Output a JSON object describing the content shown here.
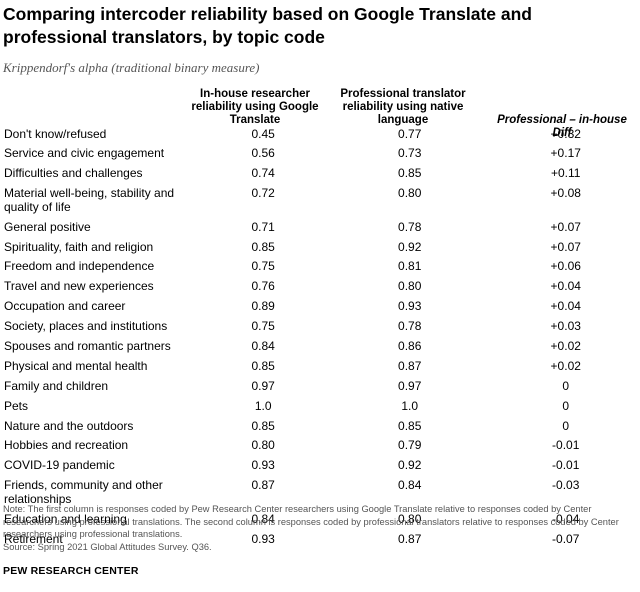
{
  "header": {
    "title": "Comparing intercoder reliability based on Google Translate and professional translators, by topic code",
    "subtitle": "Krippendorf's alpha (traditional binary measure)"
  },
  "columns": {
    "c1": "In-house researcher reliability using Google Translate",
    "c2": "Professional translator reliability using native language",
    "c3": "Professional – in-house Diff"
  },
  "chart_data": {
    "type": "table",
    "title": "Comparing intercoder reliability based on Google Translate and professional translators, by topic code",
    "subtitle": "Krippendorf's alpha (traditional binary measure)",
    "columns": [
      "In-house researcher reliability using Google Translate",
      "Professional translator reliability using native language",
      "Professional – in-house Diff"
    ],
    "rows": [
      {
        "label": "Don't know/refused",
        "inhouse": "0.45",
        "professional": "0.77",
        "diff": "+0.32"
      },
      {
        "label": "Service and civic engagement",
        "inhouse": "0.56",
        "professional": "0.73",
        "diff": "+0.17"
      },
      {
        "label": "Difficulties and challenges",
        "inhouse": "0.74",
        "professional": "0.85",
        "diff": "+0.11"
      },
      {
        "label": "Material well-being, stability and quality of life",
        "inhouse": "0.72",
        "professional": "0.80",
        "diff": "+0.08"
      },
      {
        "label": "General positive",
        "inhouse": "0.71",
        "professional": "0.78",
        "diff": "+0.07"
      },
      {
        "label": "Spirituality, faith and religion",
        "inhouse": "0.85",
        "professional": "0.92",
        "diff": "+0.07"
      },
      {
        "label": "Freedom and independence",
        "inhouse": "0.75",
        "professional": "0.81",
        "diff": "+0.06"
      },
      {
        "label": "Travel and new experiences",
        "inhouse": "0.76",
        "professional": "0.80",
        "diff": "+0.04"
      },
      {
        "label": "Occupation and career",
        "inhouse": "0.89",
        "professional": "0.93",
        "diff": "+0.04"
      },
      {
        "label": "Society, places and institutions",
        "inhouse": "0.75",
        "professional": "0.78",
        "diff": "+0.03"
      },
      {
        "label": "Spouses and romantic partners",
        "inhouse": "0.84",
        "professional": "0.86",
        "diff": "+0.02"
      },
      {
        "label": "Physical and mental health",
        "inhouse": "0.85",
        "professional": "0.87",
        "diff": "+0.02"
      },
      {
        "label": "Family and children",
        "inhouse": "0.97",
        "professional": "0.97",
        "diff": "0"
      },
      {
        "label": "Pets",
        "inhouse": "1.0",
        "professional": "1.0",
        "diff": "0"
      },
      {
        "label": "Nature and the outdoors",
        "inhouse": "0.85",
        "professional": "0.85",
        "diff": "0"
      },
      {
        "label": "Hobbies and recreation",
        "inhouse": "0.80",
        "professional": "0.79",
        "diff": "-0.01"
      },
      {
        "label": "COVID-19 pandemic",
        "inhouse": "0.93",
        "professional": "0.92",
        "diff": "-0.01"
      },
      {
        "label": "Friends, community and other relationships",
        "inhouse": "0.87",
        "professional": "0.84",
        "diff": "-0.03"
      },
      {
        "label": "Education and learning",
        "inhouse": "0.84",
        "professional": "0.80",
        "diff": "-0.04"
      },
      {
        "label": "Retirement",
        "inhouse": "0.93",
        "professional": "0.87",
        "diff": "-0.07"
      }
    ]
  },
  "footer": {
    "note": "Note: The first column is responses coded by Pew Research Center researchers using Google Translate relative to responses coded by Center researchers using professional translations. The second column is responses coded by professional translators relative to responses coded by Center researchers using professional translations.",
    "source": "Source: Spring 2021 Global Attitudes Survey. Q36.",
    "brand": "PEW RESEARCH CENTER"
  }
}
